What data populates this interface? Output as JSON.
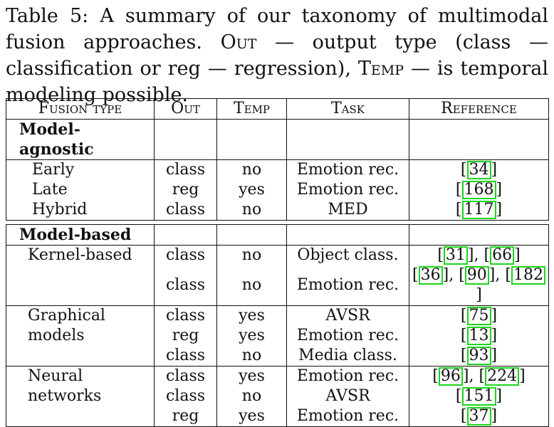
{
  "caption": {
    "prefix": "Table 5: A summary of our taxonomy of multimodal fusion approaches. ",
    "out_label": "Out",
    "out_text": " — output type (class — classification or reg — regression), ",
    "temp_label": "Temp",
    "temp_text": " — is temporal modeling possible."
  },
  "headers": [
    "Fusion type",
    "Out",
    "Temp",
    "Task",
    "Reference"
  ],
  "sections": [
    {
      "title": "Model-agnostic",
      "rows": [
        {
          "name": "Early",
          "out": "class",
          "temp": "no",
          "task": "Emotion rec.",
          "refs": [
            "34"
          ]
        },
        {
          "name": "Late",
          "out": "reg",
          "temp": "yes",
          "task": "Emotion rec.",
          "refs": [
            "168"
          ]
        },
        {
          "name": "Hybrid",
          "out": "class",
          "temp": "no",
          "task": "MED",
          "refs": [
            "117"
          ]
        }
      ]
    },
    {
      "title": "Model-based",
      "groups": [
        {
          "name_lines": [
            "Kernel-based"
          ],
          "rows": [
            {
              "out": "class",
              "temp": "no",
              "task": "Object class.",
              "refs": [
                "31",
                "66"
              ]
            },
            {
              "out": "class",
              "temp": "no",
              "task": "Emotion rec.",
              "refs": [
                "36",
                "90",
                "182"
              ]
            }
          ]
        },
        {
          "name_lines": [
            "Graphical",
            "models"
          ],
          "rows": [
            {
              "out": "class",
              "temp": "yes",
              "task": "AVSR",
              "refs": [
                "75"
              ]
            },
            {
              "out": "reg",
              "temp": "yes",
              "task": "Emotion rec.",
              "refs": [
                "13"
              ]
            },
            {
              "out": "class",
              "temp": "no",
              "task": "Media class.",
              "refs": [
                "93"
              ]
            }
          ]
        },
        {
          "name_lines": [
            "Neural",
            "networks"
          ],
          "rows": [
            {
              "out": "class",
              "temp": "yes",
              "task": "Emotion rec.",
              "refs": [
                "96",
                "224"
              ]
            },
            {
              "out": "class",
              "temp": "no",
              "task": "AVSR",
              "refs": [
                "151"
              ]
            },
            {
              "out": "reg",
              "temp": "yes",
              "task": "Emotion rec.",
              "refs": [
                "37"
              ]
            }
          ]
        }
      ]
    }
  ]
}
